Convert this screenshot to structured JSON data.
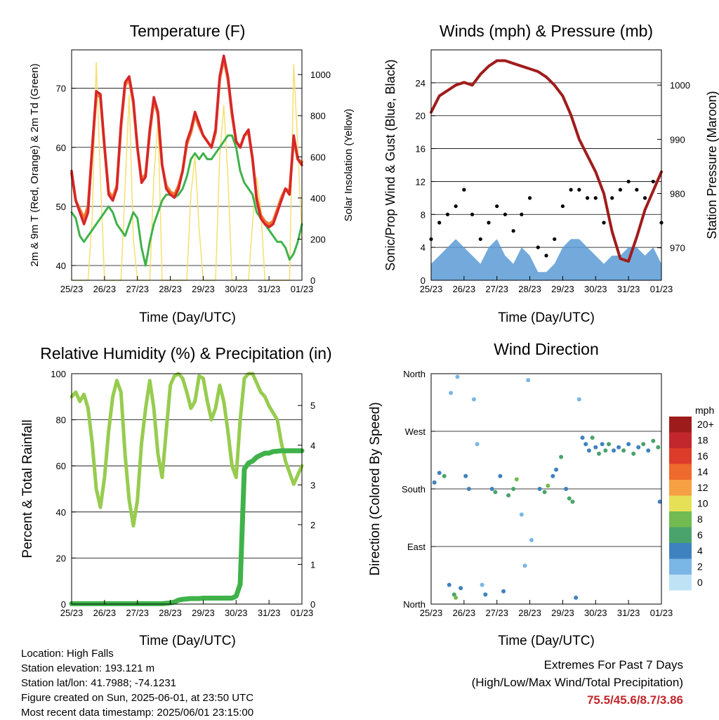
{
  "colors": {
    "temp2m": "#d6262a",
    "temp9m": "#f2782f",
    "dewpoint": "#3fb24a",
    "solar": "#f6df6e",
    "wind": "#5b9bd5",
    "gust": "#000000",
    "pressure": "#a01c1c",
    "rh": "#97cc4f",
    "precip": "#3fb24a",
    "extremes": "#c0272d"
  },
  "x_ticks": [
    "25/23",
    "26/23",
    "27/23",
    "28/23",
    "29/23",
    "30/23",
    "31/23",
    "01/23"
  ],
  "footer": {
    "location": "Location: High Falls",
    "elevation": "Station elevation: 193.121 m",
    "latlon": "Station lat/lon: 41.7988; -74.1231",
    "created": "Figure created on Sun, 2025-06-01, at 23:50 UTC",
    "recent": "Most recent data timestamp: 2025/06/01 23:15:00"
  },
  "extremes": {
    "title": "Extremes For Past 7 Days",
    "subtitle": "(High/Low/Max Wind/Total Precipitation)",
    "values": "75.5/45.6/8.7/3.86"
  },
  "chart_data": [
    {
      "type": "line",
      "title": "Temperature (F)",
      "xlabel": "Time (Day/UTC)",
      "ylabel": "2m & 9m T (Red, Orange) & 2m Td (Green)",
      "ylabel_right": "Solar Insolation (Yellow)",
      "xlim": [
        0,
        7
      ],
      "ylim": [
        37.5,
        76.5
      ],
      "ylim_right": [
        0,
        1120
      ],
      "yticks": [
        40,
        50,
        60,
        70
      ],
      "yticks_right": [
        0,
        200,
        400,
        600,
        800,
        1000
      ],
      "grid": "horizontal",
      "x": [
        0,
        0.125,
        0.25,
        0.375,
        0.5,
        0.625,
        0.75,
        0.875,
        1,
        1.125,
        1.25,
        1.375,
        1.5,
        1.625,
        1.75,
        1.875,
        2,
        2.125,
        2.25,
        2.375,
        2.5,
        2.625,
        2.75,
        2.875,
        3,
        3.125,
        3.25,
        3.375,
        3.5,
        3.625,
        3.75,
        3.875,
        4,
        4.125,
        4.25,
        4.375,
        4.5,
        4.625,
        4.75,
        4.875,
        5,
        5.125,
        5.25,
        5.375,
        5.5,
        5.625,
        5.75,
        5.875,
        6,
        6.125,
        6.25,
        6.375,
        6.5,
        6.625,
        6.75,
        6.875,
        7
      ],
      "series": [
        {
          "name": "2m T",
          "values": [
            56,
            51,
            49,
            47,
            49,
            60,
            69.5,
            69,
            60,
            52,
            51,
            53,
            64,
            71,
            72,
            68,
            60,
            54,
            55,
            63,
            68.5,
            66,
            57,
            53,
            52,
            51.5,
            53,
            56,
            61,
            63,
            66,
            64,
            62,
            61,
            60,
            63,
            72,
            75.5,
            72,
            66,
            61,
            60,
            62,
            63,
            58,
            51,
            48,
            47,
            46.5,
            47,
            49,
            51,
            53,
            52,
            62,
            58,
            57
          ]
        },
        {
          "name": "9m T",
          "values": [
            55.5,
            51,
            49.5,
            48,
            50,
            59.5,
            69,
            68.5,
            60,
            52.5,
            51.5,
            53.5,
            63.5,
            70.5,
            71.5,
            67.5,
            60,
            54.5,
            55.5,
            62.5,
            68,
            65.5,
            57,
            53.5,
            52.5,
            52,
            53.5,
            56,
            60.5,
            62.5,
            65.5,
            63.5,
            62,
            61,
            60,
            62.5,
            71.5,
            75,
            71.5,
            65.5,
            61,
            60,
            62,
            62.5,
            58,
            51.5,
            48.5,
            47.5,
            47,
            47.5,
            49.5,
            51.5,
            53,
            52.5,
            61.5,
            58,
            57.5
          ]
        },
        {
          "name": "2m Td",
          "values": [
            49,
            48,
            45,
            44,
            45,
            46,
            47,
            48,
            49,
            50,
            49,
            47,
            46,
            45,
            47,
            49,
            48,
            43,
            40,
            44,
            47,
            49,
            51,
            52,
            52,
            51.5,
            52,
            53,
            55,
            58,
            59,
            58,
            59,
            58,
            58,
            59,
            60,
            61,
            62,
            62,
            60,
            56,
            54,
            53,
            52,
            49,
            48,
            47,
            46,
            45,
            44,
            44,
            43,
            41,
            42,
            44,
            47
          ]
        },
        {
          "name": "Solar",
          "axis": "right",
          "values": [
            0,
            0,
            0,
            0,
            0,
            300,
            1060,
            500,
            0,
            0,
            0,
            0,
            0,
            450,
            900,
            200,
            0,
            0,
            0,
            0,
            500,
            780,
            0,
            0,
            0,
            0,
            0,
            0,
            0,
            420,
            600,
            250,
            0,
            0,
            0,
            0,
            600,
            850,
            500,
            0,
            0,
            0,
            0,
            0,
            280,
            500,
            350,
            0,
            0,
            0,
            0,
            0,
            0,
            0,
            1050,
            650,
            200
          ]
        }
      ]
    },
    {
      "type": "scatter",
      "title": "Winds (mph) & Pressure (mb)",
      "xlabel": "Time (Day/UTC)",
      "ylabel": "Sonic/Prop Wind & Gust (Blue, Black)",
      "ylabel_right": "Station Pressure (Maroon)",
      "xlim": [
        0,
        7
      ],
      "ylim": [
        0,
        28
      ],
      "ylim_right": [
        964,
        1006.5
      ],
      "yticks": [
        0,
        4,
        8,
        12,
        16,
        20,
        24
      ],
      "yticks_right": [
        970,
        980,
        990,
        1000
      ],
      "grid": "horizontal",
      "x": [
        0,
        0.25,
        0.5,
        0.75,
        1,
        1.25,
        1.5,
        1.75,
        2,
        2.25,
        2.5,
        2.75,
        3,
        3.25,
        3.5,
        3.75,
        4,
        4.25,
        4.5,
        4.75,
        5,
        5.25,
        5.5,
        5.75,
        6,
        6.25,
        6.5,
        6.75,
        7
      ],
      "series": [
        {
          "name": "Wind",
          "values": [
            2,
            3,
            4,
            5,
            4,
            3,
            2,
            4,
            5,
            3,
            2,
            4,
            3,
            1,
            1,
            2,
            4,
            5,
            5,
            4,
            3,
            2,
            3,
            3,
            4,
            4,
            3,
            4,
            2
          ]
        },
        {
          "name": "Gust",
          "values": [
            5,
            7,
            8,
            9,
            11,
            8,
            5,
            7,
            9,
            8,
            6,
            8,
            10,
            4,
            3,
            5,
            9,
            11,
            11,
            10,
            10,
            7,
            10,
            11,
            12,
            11,
            10,
            12,
            7
          ]
        },
        {
          "name": "Pressure",
          "axis": "right",
          "values": [
            995,
            998,
            999,
            1000,
            1000.5,
            1000,
            1002,
            1003.5,
            1004.5,
            1004.5,
            1004,
            1003.5,
            1003,
            1002.5,
            1001.5,
            1000,
            998,
            994.5,
            990,
            987,
            984,
            980,
            973,
            968,
            967.5,
            972,
            977,
            980.5,
            984
          ]
        }
      ]
    },
    {
      "type": "line",
      "title": "Relative Humidity (%) & Precipitation (in)",
      "xlabel": "Time (Day/UTC)",
      "ylabel": "Percent & Total Rainfall",
      "xlim": [
        0,
        7
      ],
      "ylim": [
        0,
        100
      ],
      "ylim_right": [
        0,
        5.8
      ],
      "yticks": [
        0,
        20,
        40,
        60,
        80,
        100
      ],
      "yticks_right": [
        0.0,
        1.0,
        2.0,
        3.0,
        4.0,
        5.0
      ],
      "grid": "horizontal",
      "x": [
        0,
        0.125,
        0.25,
        0.375,
        0.5,
        0.625,
        0.75,
        0.875,
        1,
        1.125,
        1.25,
        1.375,
        1.5,
        1.625,
        1.75,
        1.875,
        2,
        2.125,
        2.25,
        2.375,
        2.5,
        2.625,
        2.75,
        2.875,
        3,
        3.125,
        3.25,
        3.375,
        3.5,
        3.625,
        3.75,
        3.875,
        4,
        4.125,
        4.25,
        4.375,
        4.5,
        4.625,
        4.75,
        4.875,
        5,
        5.125,
        5.25,
        5.375,
        5.5,
        5.625,
        5.75,
        5.875,
        6,
        6.125,
        6.25,
        6.375,
        6.5,
        6.625,
        6.75,
        6.875,
        7
      ],
      "series": [
        {
          "name": "RH",
          "values": [
            90,
            92,
            88,
            91,
            85,
            70,
            50,
            42,
            55,
            75,
            90,
            97,
            92,
            65,
            45,
            34,
            45,
            70,
            85,
            97,
            85,
            65,
            55,
            75,
            95,
            99,
            100,
            98,
            92,
            85,
            88,
            99,
            98,
            88,
            80,
            85,
            95,
            88,
            75,
            60,
            55,
            80,
            98,
            100,
            100,
            96,
            92,
            90,
            86,
            83,
            80,
            70,
            62,
            57,
            52,
            56,
            60
          ]
        },
        {
          "name": "Precipitation",
          "axis": "right",
          "values": [
            0.01,
            0.01,
            0.01,
            0.01,
            0.01,
            0.01,
            0.01,
            0.01,
            0.01,
            0.01,
            0.01,
            0.01,
            0.01,
            0.01,
            0.01,
            0.01,
            0.01,
            0.01,
            0.01,
            0.01,
            0.01,
            0.01,
            0.01,
            0.02,
            0.03,
            0.05,
            0.1,
            0.12,
            0.13,
            0.14,
            0.14,
            0.14,
            0.15,
            0.15,
            0.15,
            0.15,
            0.15,
            0.15,
            0.15,
            0.15,
            0.2,
            0.5,
            3.4,
            3.55,
            3.6,
            3.7,
            3.75,
            3.8,
            3.8,
            3.84,
            3.85,
            3.86,
            3.86,
            3.86,
            3.86,
            3.86,
            3.86
          ]
        }
      ]
    },
    {
      "type": "scatter",
      "title": "Wind Direction",
      "xlabel": "Time (Day/UTC)",
      "ylabel": "Direction (Colored By Speed)",
      "xlim": [
        0,
        7
      ],
      "ylim": [
        0,
        360
      ],
      "ytick_values": [
        0,
        90,
        180,
        270,
        360
      ],
      "yticks": [
        "North",
        "East",
        "South",
        "West",
        "North"
      ],
      "grid": "horizontal",
      "colorbar": {
        "title": "mph",
        "labels": [
          "20+",
          "18",
          "16",
          "14",
          "12",
          "10",
          "8",
          "6",
          "4",
          "2",
          "0"
        ],
        "colors": [
          "#9e1b1b",
          "#c2272d",
          "#de3c2a",
          "#ef6a2d",
          "#f7a043",
          "#e6e057",
          "#72bb52",
          "#4aa36c",
          "#3f82c0",
          "#7ab6e6",
          "#bfe3f5"
        ]
      },
      "points": [
        {
          "x": 0.1,
          "dir": 190,
          "spd": 3
        },
        {
          "x": 0.25,
          "dir": 205,
          "spd": 4
        },
        {
          "x": 0.4,
          "dir": 200,
          "spd": 5
        },
        {
          "x": 0.6,
          "dir": 330,
          "spd": 1
        },
        {
          "x": 0.8,
          "dir": 355,
          "spd": 2
        },
        {
          "x": 0.55,
          "dir": 30,
          "spd": 3
        },
        {
          "x": 0.7,
          "dir": 15,
          "spd": 5
        },
        {
          "x": 0.75,
          "dir": 10,
          "spd": 7
        },
        {
          "x": 0.9,
          "dir": 25,
          "spd": 4
        },
        {
          "x": 1.05,
          "dir": 200,
          "spd": 4
        },
        {
          "x": 1.15,
          "dir": 180,
          "spd": 3
        },
        {
          "x": 1.3,
          "dir": 320,
          "spd": 1
        },
        {
          "x": 1.4,
          "dir": 250,
          "spd": 1
        },
        {
          "x": 1.55,
          "dir": 30,
          "spd": 2
        },
        {
          "x": 1.65,
          "dir": 15,
          "spd": 4
        },
        {
          "x": 1.85,
          "dir": 180,
          "spd": 4
        },
        {
          "x": 1.95,
          "dir": 175,
          "spd": 5
        },
        {
          "x": 2.1,
          "dir": 200,
          "spd": 4
        },
        {
          "x": 2.2,
          "dir": 20,
          "spd": 3
        },
        {
          "x": 2.35,
          "dir": 170,
          "spd": 5
        },
        {
          "x": 2.5,
          "dir": 180,
          "spd": 6
        },
        {
          "x": 2.6,
          "dir": 195,
          "spd": 7
        },
        {
          "x": 2.75,
          "dir": 140,
          "spd": 1
        },
        {
          "x": 2.85,
          "dir": 60,
          "spd": 1
        },
        {
          "x": 2.95,
          "dir": 350,
          "spd": 1
        },
        {
          "x": 3.05,
          "dir": 100,
          "spd": 1
        },
        {
          "x": 3.3,
          "dir": 180,
          "spd": 3
        },
        {
          "x": 3.45,
          "dir": 175,
          "spd": 6
        },
        {
          "x": 3.55,
          "dir": 185,
          "spd": 7
        },
        {
          "x": 3.7,
          "dir": 200,
          "spd": 4
        },
        {
          "x": 3.8,
          "dir": 210,
          "spd": 4
        },
        {
          "x": 3.95,
          "dir": 230,
          "spd": 5
        },
        {
          "x": 4.1,
          "dir": 180,
          "spd": 4
        },
        {
          "x": 4.2,
          "dir": 165,
          "spd": 5
        },
        {
          "x": 4.3,
          "dir": 160,
          "spd": 6
        },
        {
          "x": 4.4,
          "dir": 10,
          "spd": 4
        },
        {
          "x": 4.5,
          "dir": 320,
          "spd": 2
        },
        {
          "x": 4.6,
          "dir": 260,
          "spd": 3
        },
        {
          "x": 4.7,
          "dir": 250,
          "spd": 4
        },
        {
          "x": 4.8,
          "dir": 240,
          "spd": 4
        },
        {
          "x": 4.9,
          "dir": 260,
          "spd": 5
        },
        {
          "x": 5.0,
          "dir": 245,
          "spd": 4
        },
        {
          "x": 5.1,
          "dir": 235,
          "spd": 5
        },
        {
          "x": 5.2,
          "dir": 250,
          "spd": 4
        },
        {
          "x": 5.3,
          "dir": 240,
          "spd": 6
        },
        {
          "x": 5.4,
          "dir": 250,
          "spd": 5
        },
        {
          "x": 5.55,
          "dir": 240,
          "spd": 4
        },
        {
          "x": 5.7,
          "dir": 245,
          "spd": 4
        },
        {
          "x": 5.85,
          "dir": 240,
          "spd": 5
        },
        {
          "x": 6.0,
          "dir": 250,
          "spd": 4
        },
        {
          "x": 6.15,
          "dir": 235,
          "spd": 6
        },
        {
          "x": 6.3,
          "dir": 245,
          "spd": 4
        },
        {
          "x": 6.45,
          "dir": 250,
          "spd": 5
        },
        {
          "x": 6.6,
          "dir": 240,
          "spd": 4
        },
        {
          "x": 6.75,
          "dir": 255,
          "spd": 5
        },
        {
          "x": 6.9,
          "dir": 245,
          "spd": 6
        },
        {
          "x": 6.95,
          "dir": 160,
          "spd": 3
        }
      ]
    }
  ]
}
